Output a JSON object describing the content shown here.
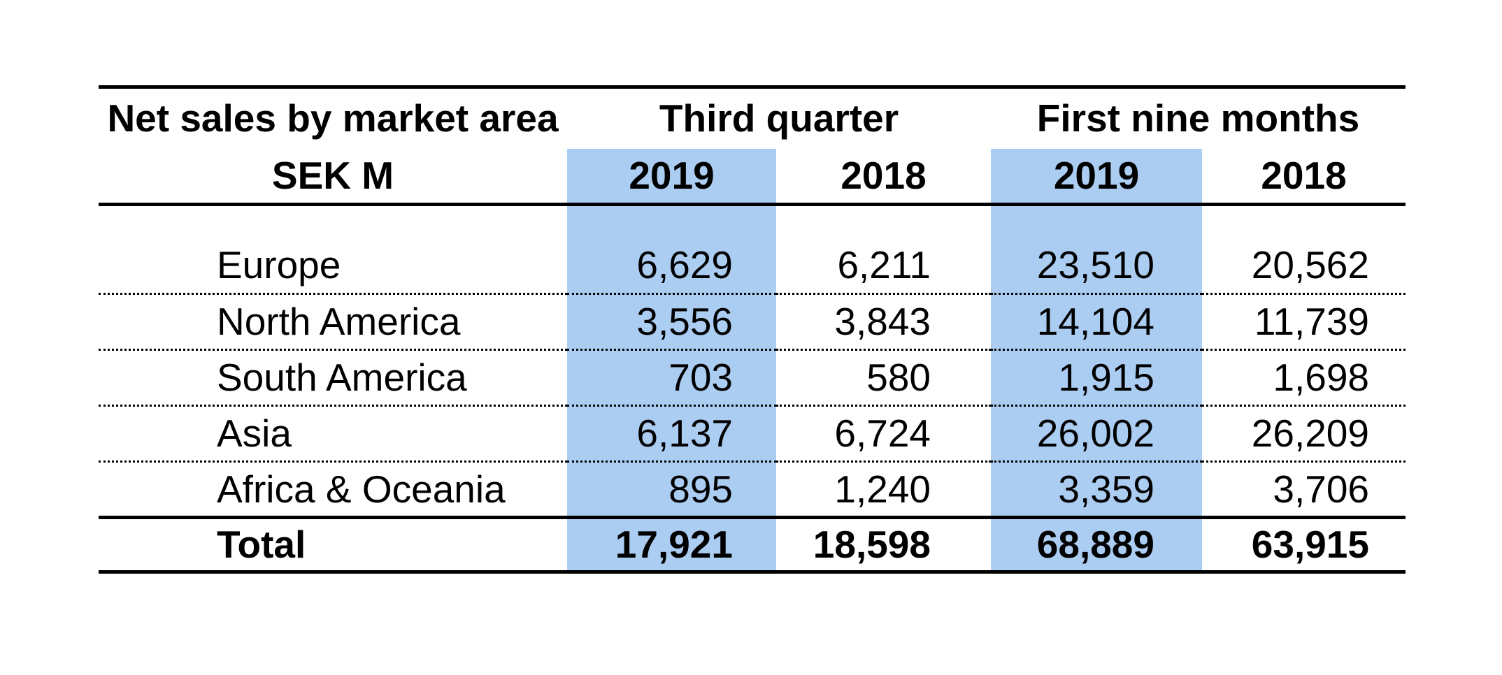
{
  "table": {
    "title": "Net sales by market area",
    "unit": "SEK M",
    "groups": [
      {
        "label": "Third quarter",
        "years": [
          "2019",
          "2018"
        ]
      },
      {
        "label": "First nine months",
        "years": [
          "2019",
          "2018"
        ]
      }
    ],
    "rows": [
      {
        "label": "Europe",
        "values": [
          "6,629",
          "6,211",
          "23,510",
          "20,562"
        ]
      },
      {
        "label": "North America",
        "values": [
          "3,556",
          "3,843",
          "14,104",
          "11,739"
        ]
      },
      {
        "label": "South America",
        "values": [
          "703",
          "580",
          "1,915",
          "1,698"
        ]
      },
      {
        "label": "Asia",
        "values": [
          "6,137",
          "6,724",
          "26,002",
          "26,209"
        ]
      },
      {
        "label": "Africa & Oceania",
        "values": [
          "895",
          "1,240",
          "3,359",
          "3,706"
        ]
      }
    ],
    "total": {
      "label": "Total",
      "values": [
        "17,921",
        "18,598",
        "68,889",
        "63,915"
      ]
    },
    "highlight_color": "#ACCDF2"
  },
  "chart_data": {
    "type": "table",
    "title": "Net sales by market area",
    "unit": "SEK M",
    "columns": [
      "Third quarter 2019",
      "Third quarter 2018",
      "First nine months 2019",
      "First nine months 2018"
    ],
    "highlighted_columns": [
      "Third quarter 2019",
      "First nine months 2019"
    ],
    "rows": [
      {
        "market_area": "Europe",
        "values": [
          6629,
          6211,
          23510,
          20562
        ]
      },
      {
        "market_area": "North America",
        "values": [
          3556,
          3843,
          14104,
          11739
        ]
      },
      {
        "market_area": "South America",
        "values": [
          703,
          580,
          1915,
          1698
        ]
      },
      {
        "market_area": "Asia",
        "values": [
          6137,
          6724,
          26002,
          26209
        ]
      },
      {
        "market_area": "Africa & Oceania",
        "values": [
          895,
          1240,
          3359,
          3706
        ]
      }
    ],
    "total": {
      "market_area": "Total",
      "values": [
        17921,
        18598,
        68889,
        63915
      ]
    }
  }
}
